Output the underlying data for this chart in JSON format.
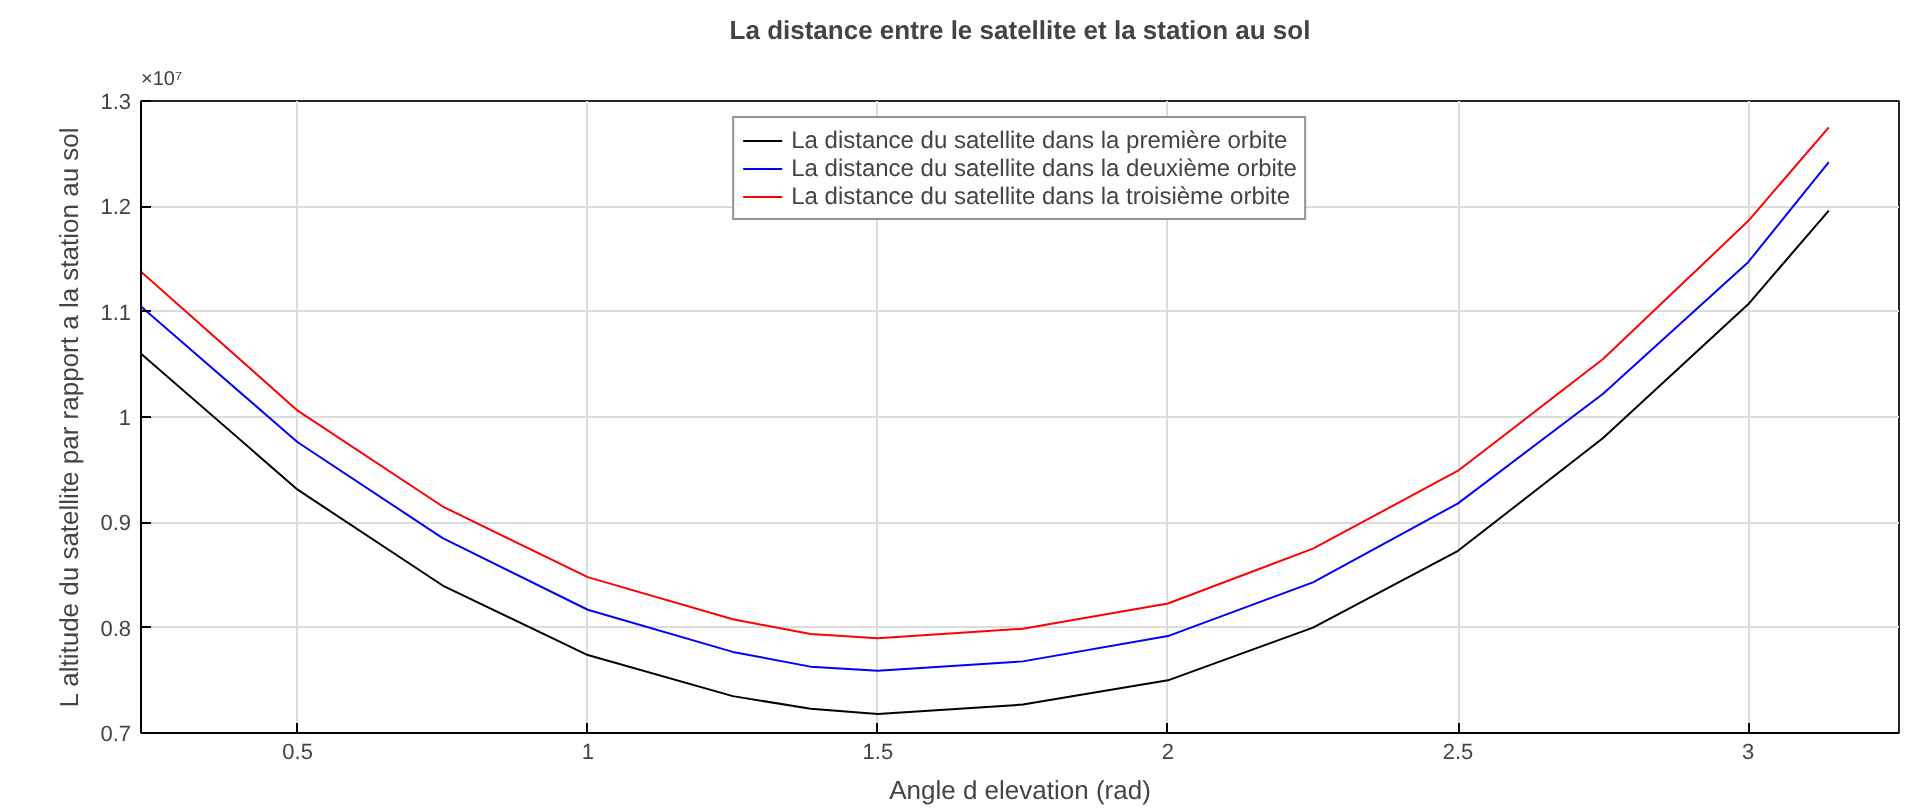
{
  "chart_data": {
    "type": "line",
    "title": "La distance entre le satellite et la station au sol",
    "xlabel": "Angle d elevation (rad)",
    "ylabel": "L altitude du satellite par rapport a la station au sol",
    "annotations": [
      "×10⁷"
    ],
    "x": [
      0.23,
      0.5,
      0.75,
      1.0,
      1.25,
      1.384,
      1.5,
      1.75,
      2.0,
      2.25,
      2.5,
      2.75,
      3.0,
      3.139
    ],
    "series": [
      {
        "name": "La distance du satellite dans la première orbite",
        "color": "#000000",
        "values": [
          1.06,
          0.931,
          0.84,
          0.774,
          0.735,
          0.723,
          0.718,
          0.727,
          0.75,
          0.8,
          0.873,
          0.98,
          1.107,
          1.196
        ]
      },
      {
        "name": "La distance du satellite dans la deuxième orbite",
        "color": "#0000ff",
        "values": [
          1.105,
          0.976,
          0.885,
          0.817,
          0.777,
          0.763,
          0.759,
          0.768,
          0.792,
          0.843,
          0.918,
          1.022,
          1.147,
          1.242
        ]
      },
      {
        "name": "La distance du satellite dans la troisième orbite",
        "color": "#ff0000",
        "values": [
          1.138,
          1.006,
          0.915,
          0.848,
          0.808,
          0.794,
          0.79,
          0.799,
          0.823,
          0.875,
          0.949,
          1.055,
          1.186,
          1.275
        ]
      }
    ],
    "xlim": [
      0.23,
      3.26
    ],
    "ylim": [
      0.7,
      1.3
    ],
    "xticks": [
      0.5,
      1,
      1.5,
      2,
      2.5,
      3
    ],
    "yticks": [
      0.7,
      0.8,
      0.9,
      1,
      1.1,
      1.2,
      1.3
    ],
    "grid": true,
    "legend": "top",
    "line_style": "solid"
  }
}
